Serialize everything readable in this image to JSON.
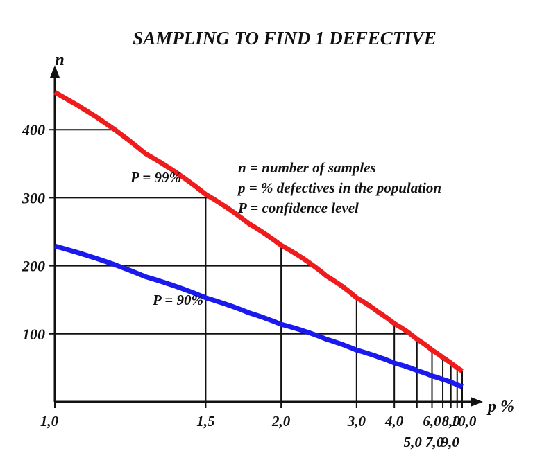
{
  "chart_data": {
    "type": "line",
    "title": "SAMPLING TO FIND 1 DEFECTIVE",
    "ylabel": "n",
    "xlabel": "p %",
    "ylim": [
      0,
      470
    ],
    "xlim": [
      1.0,
      10.0
    ],
    "x_scale": "reciprocal",
    "grid": true,
    "x_ticks": [
      1.0,
      1.5,
      2.0,
      3.0,
      4.0,
      5.0,
      6.0,
      7.0,
      8.0,
      9.0,
      10.0
    ],
    "x_tick_labels": [
      "1,0",
      "1,5",
      "2,0",
      "3,0",
      "4,0",
      "5,0",
      "6,0",
      "7,0",
      "8,0",
      "9,0",
      "10,0"
    ],
    "y_ticks": [
      100,
      200,
      300,
      400
    ],
    "y_tick_labels": [
      "100",
      "200",
      "300",
      "400"
    ],
    "series": [
      {
        "name": "P = 99%",
        "color": "#ee1c1c",
        "x": [
          1.0,
          1.25,
          1.5,
          1.75,
          2.0,
          2.5,
          3.0,
          3.5,
          4.0,
          5.0,
          6.0,
          7.0,
          8.0,
          9.0,
          10.0
        ],
        "y": [
          455,
          365,
          305,
          262,
          230,
          185,
          153,
          132,
          115,
          92,
          76,
          65,
          57,
          50,
          45
        ]
      },
      {
        "name": "P = 90%",
        "color": "#1a1aee",
        "x": [
          1.0,
          1.25,
          1.5,
          1.75,
          2.0,
          2.5,
          3.0,
          3.5,
          4.0,
          5.0,
          6.0,
          7.0,
          8.0,
          9.0,
          10.0
        ],
        "y": [
          229,
          184,
          153,
          131,
          114,
          92,
          76,
          66,
          57,
          46,
          38,
          33,
          29,
          25,
          22
        ]
      }
    ],
    "legend_text": [
      "n = number of samples",
      "p = % defectives in the population",
      "P = confidence level"
    ]
  }
}
